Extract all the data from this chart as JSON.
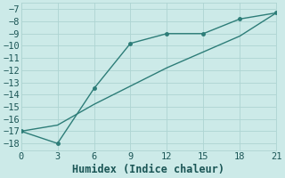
{
  "line1_x": [
    0,
    3,
    6,
    9,
    12,
    15,
    18,
    21
  ],
  "line1_y": [
    -17,
    -18,
    -13.5,
    -9.8,
    -9.0,
    -9.0,
    -7.8,
    -7.3
  ],
  "line2_x": [
    0,
    3,
    6,
    9,
    12,
    15,
    18,
    21
  ],
  "line2_y": [
    -17,
    -16.5,
    -14.8,
    -13.3,
    -11.8,
    -10.5,
    -9.2,
    -7.3
  ],
  "line_color": "#2d7d78",
  "marker_color": "#2d7d78",
  "bg_color": "#cceae8",
  "grid_color": "#aed4d2",
  "xlabel": "Humidex (Indice chaleur)",
  "xlim": [
    0,
    21
  ],
  "ylim": [
    -18.6,
    -6.5
  ],
  "xticks": [
    0,
    3,
    6,
    9,
    12,
    15,
    18,
    21
  ],
  "yticks": [
    -7,
    -8,
    -9,
    -10,
    -11,
    -12,
    -13,
    -14,
    -15,
    -16,
    -17,
    -18
  ],
  "font_color": "#1a5555",
  "font_size": 7.5,
  "xlabel_fontsize": 8.5,
  "linewidth": 1.0,
  "markersize": 2.5
}
